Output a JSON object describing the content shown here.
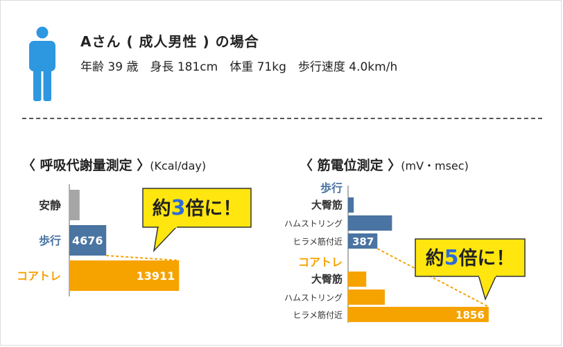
{
  "header": {
    "title": "Aさん ( 成人男性 ) の場合",
    "profile": "年齢 39 歳　身長 181cm　体重 71kg　歩行速度 4.0km/h"
  },
  "colors": {
    "walk": "#4a74a2",
    "core": "#f6a300",
    "rest": "#a6a6a6",
    "figure": "#2d97e0",
    "callout_bg": "#ffe60f",
    "callout_num": "#2d6bd6"
  },
  "metabolism": {
    "title": "〈 呼吸代謝量測定 〉",
    "unit": "(Kcal/day)",
    "callout": {
      "pre": "約",
      "num": "3",
      "post": "倍に！"
    },
    "chart_data": {
      "type": "bar",
      "orientation": "horizontal",
      "categories": [
        "安静",
        "歩行",
        "コアトレ"
      ],
      "values": [
        1300,
        4676,
        13911
      ],
      "labels": [
        "",
        "4676",
        "13911"
      ],
      "xlim": [
        0,
        14500
      ]
    }
  },
  "emg": {
    "title": "〈 筋電位測定 〉",
    "unit": "(mV・msec)",
    "callout": {
      "pre": "約",
      "num": "5",
      "post": "倍に！"
    },
    "chart_data": {
      "type": "bar",
      "orientation": "horizontal",
      "series": [
        {
          "name": "歩行",
          "categories": [
            "大臀筋",
            "ハムストリング",
            "ヒラメ筋付近"
          ],
          "values": [
            75,
            580,
            387
          ],
          "labels": [
            "",
            "",
            "387"
          ]
        },
        {
          "name": "コアトレ",
          "categories": [
            "大臀筋",
            "ハムストリング",
            "ヒラメ筋付近"
          ],
          "values": [
            240,
            485,
            1856
          ],
          "labels": [
            "",
            "",
            "1856"
          ]
        }
      ],
      "xlim": [
        0,
        2050
      ]
    }
  }
}
